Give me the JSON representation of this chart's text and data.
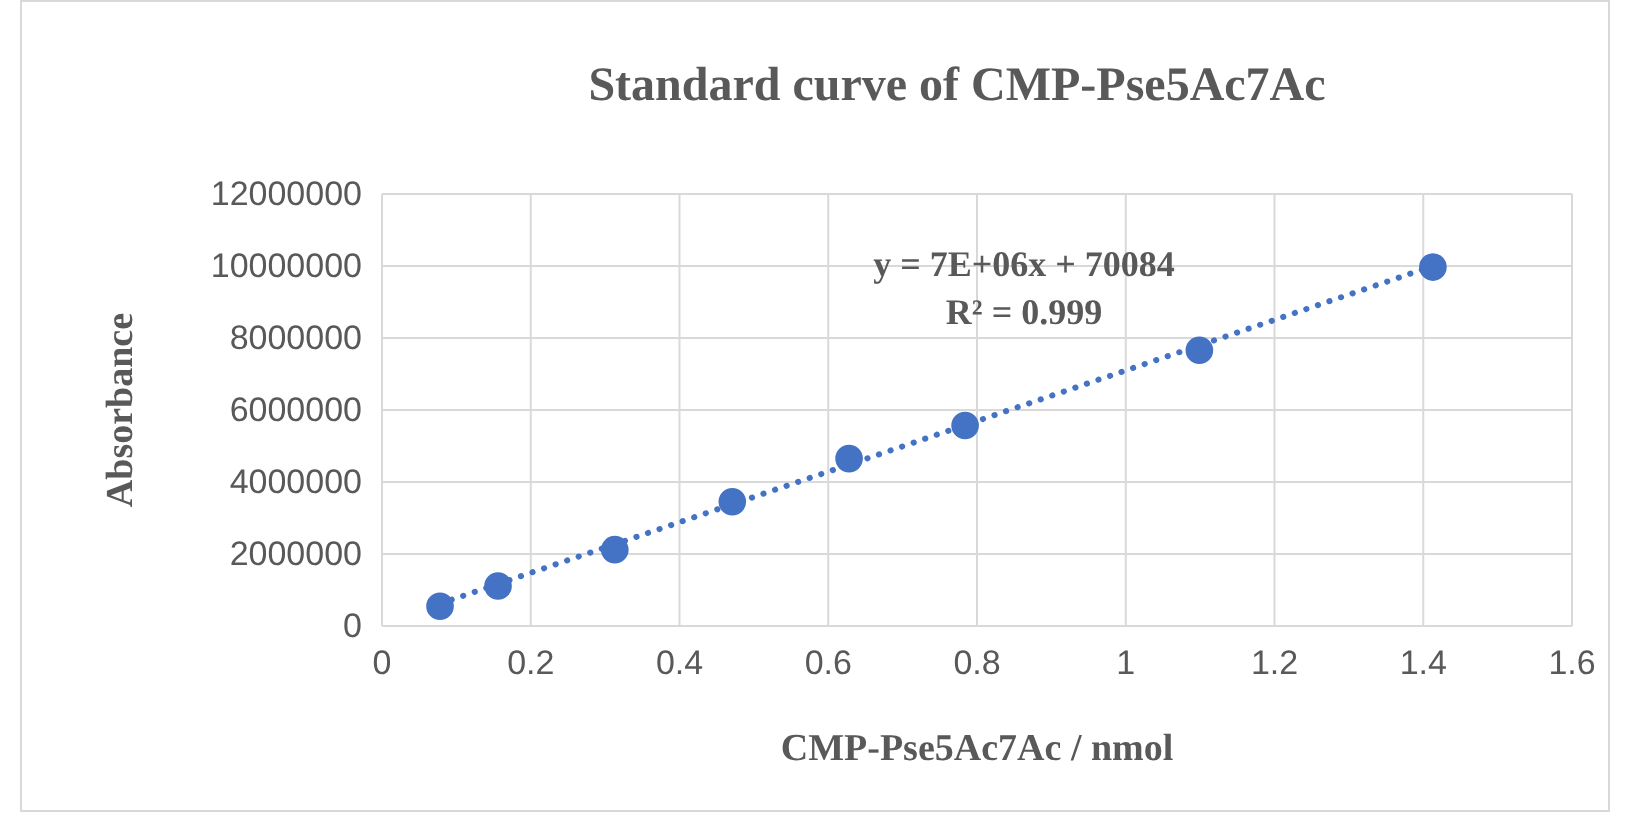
{
  "chart_data": {
    "type": "scatter",
    "title": "Standard curve of CMP-Pse5Ac7Ac",
    "xlabel": "CMP-Pse5Ac7Ac / nmol",
    "ylabel": "Absorbance",
    "annotations": [
      "y = 7E+06x + 70084",
      "R² = 0.999"
    ],
    "series": [
      {
        "color": "#4472c4",
        "x": [
          0.078,
          0.156,
          0.313,
          0.471,
          0.628,
          0.784,
          1.099,
          1.413
        ],
        "values": [
          550000,
          1110000,
          2120000,
          3450000,
          4650000,
          5570000,
          7660000,
          9970000
        ],
        "marker": "circle"
      },
      {
        "type": "line",
        "color": "#4472c4",
        "x": [
          0.078,
          1.413
        ],
        "values": [
          620000,
          10000000
        ],
        "line_style": "dotted",
        "marker": "none"
      }
    ],
    "xlim": [
      0,
      1.6
    ],
    "xticks": [
      0,
      0.2,
      0.4,
      0.6,
      0.8,
      1,
      1.2,
      1.4,
      1.6
    ],
    "ylim": [
      0,
      12000000
    ],
    "yticks": [
      0,
      2000000,
      4000000,
      6000000,
      8000000,
      10000000,
      12000000
    ],
    "grid": true
  }
}
